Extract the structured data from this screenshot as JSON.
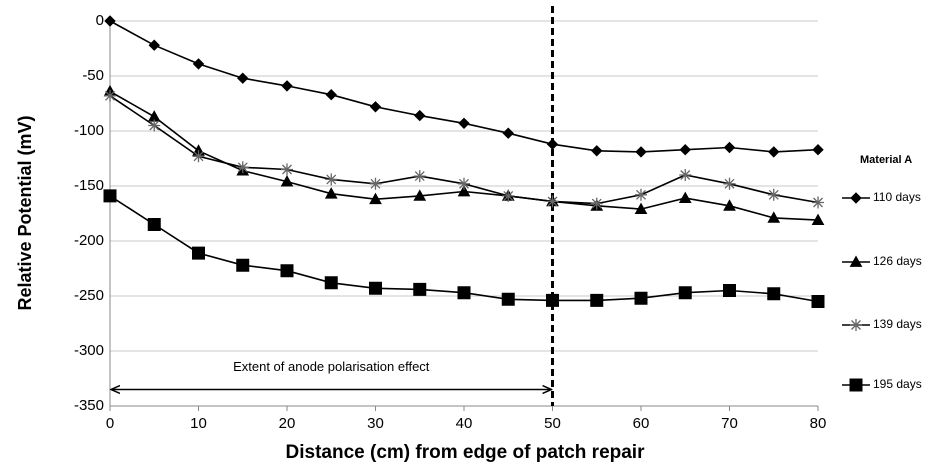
{
  "chart_data": {
    "type": "line",
    "xlabel": "Distance (cm) from edge of patch repair",
    "ylabel": "Relative Potential (mV)",
    "legend_title": "Material A",
    "legend": "right",
    "grid": true,
    "x": [
      0,
      5,
      10,
      15,
      20,
      25,
      30,
      35,
      40,
      45,
      50,
      55,
      60,
      65,
      70,
      75,
      80
    ],
    "xlim": [
      0,
      80
    ],
    "xticks": [
      0,
      10,
      20,
      30,
      40,
      50,
      60,
      70,
      80
    ],
    "ylim": [
      -350,
      0
    ],
    "yticks": [
      0,
      -50,
      -100,
      -150,
      -200,
      -250,
      -300,
      -350
    ],
    "series": [
      {
        "name": "110 days",
        "color": "#000000",
        "marker": "diamond",
        "values": [
          0,
          -22,
          -39,
          -52,
          -59,
          -67,
          -78,
          -86,
          -93,
          -102,
          -112,
          -118,
          -119,
          -117,
          -115,
          -119,
          -117
        ]
      },
      {
        "name": "126 days",
        "color": "#000000",
        "marker": "triangle",
        "values": [
          -64,
          -87,
          -118,
          -136,
          -146,
          -157,
          -162,
          -159,
          -155,
          -159,
          -164,
          -168,
          -171,
          -161,
          -168,
          -179,
          -181
        ]
      },
      {
        "name": "139 days",
        "color": "#666666",
        "marker": "asterisk",
        "values": [
          -68,
          -95,
          -123,
          -133,
          -135,
          -144,
          -148,
          -141,
          -148,
          -159,
          -164,
          -166,
          -158,
          -140,
          -148,
          -158,
          -165
        ]
      },
      {
        "name": "195 days",
        "color": "#000000",
        "marker": "square",
        "values": [
          -159,
          -185,
          -211,
          -222,
          -227,
          -238,
          -243,
          -244,
          -247,
          -253,
          -254,
          -254,
          -252,
          -247,
          -245,
          -248,
          -255
        ]
      }
    ],
    "vline": 50,
    "annotation": {
      "text": "Extent of  anode polarisation effect",
      "x_from": 0,
      "x_to": 50,
      "y": -335
    }
  }
}
